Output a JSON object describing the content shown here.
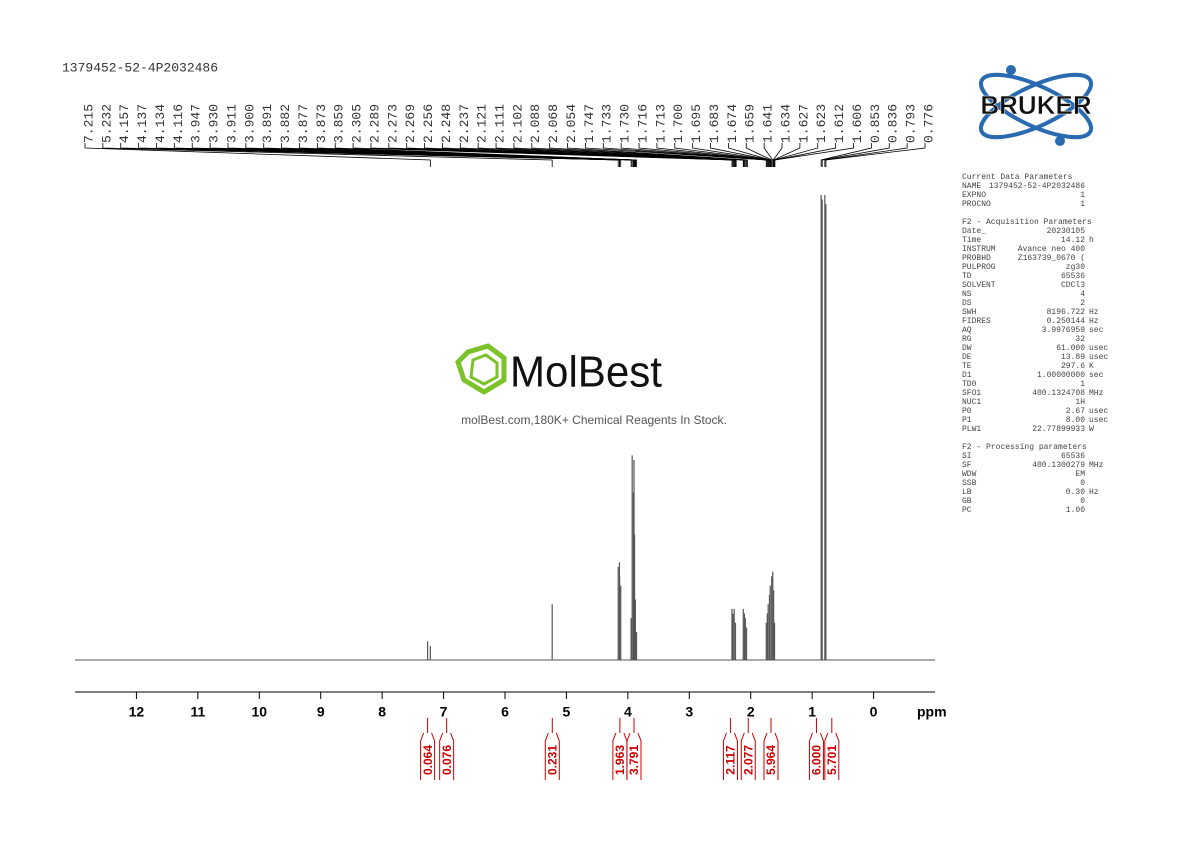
{
  "chart_data": {
    "type": "nmr",
    "title": "1379452-52-4P2032486",
    "x_label": "ppm",
    "xlim": [
      13,
      -1
    ],
    "xticks": [
      12,
      11,
      10,
      9,
      8,
      7,
      6,
      5,
      4,
      3,
      2,
      1,
      0
    ],
    "ylim": [
      0,
      100
    ],
    "color": "#555555",
    "x": [
      7.26,
      7.215,
      5.232,
      4.157,
      4.137,
      4.134,
      4.116,
      3.947,
      3.93,
      3.911,
      3.9,
      3.891,
      3.877,
      3.859,
      2.305,
      2.289,
      2.269,
      2.248,
      2.121,
      2.102,
      2.088,
      2.068,
      1.747,
      1.73,
      1.716,
      1.695,
      1.683,
      1.659,
      1.641,
      1.627,
      1.612,
      0.853,
      0.836,
      0.793,
      0.776
    ],
    "values": [
      4,
      3,
      12,
      20,
      21,
      18,
      16,
      9,
      44,
      36,
      43,
      27,
      13,
      6,
      11,
      10,
      11,
      8,
      11,
      10,
      9,
      7,
      8,
      10,
      12,
      14,
      16,
      18,
      19,
      15,
      8,
      100,
      99,
      100,
      98
    ],
    "peak_labels": [
      "7.215",
      "5.232",
      "4.157",
      "4.137",
      "4.134",
      "4.116",
      "3.947",
      "3.930",
      "3.911",
      "3.900",
      "3.891",
      "3.882",
      "3.877",
      "3.873",
      "3.859",
      "2.305",
      "2.289",
      "2.273",
      "2.269",
      "2.256",
      "2.248",
      "2.237",
      "2.121",
      "2.111",
      "2.102",
      "2.088",
      "2.068",
      "2.054",
      "1.747",
      "1.733",
      "1.730",
      "1.716",
      "1.713",
      "1.700",
      "1.695",
      "1.683",
      "1.674",
      "1.659",
      "1.641",
      "1.634",
      "1.627",
      "1.623",
      "1.612",
      "1.606",
      "0.853",
      "0.836",
      "0.793",
      "0.776"
    ],
    "integrals": [
      {
        "ppm": 7.26,
        "label": "0.064"
      },
      {
        "ppm": 6.95,
        "label": "0.076"
      },
      {
        "ppm": 5.23,
        "label": "0.231"
      },
      {
        "ppm": 4.13,
        "label": "1.963"
      },
      {
        "ppm": 3.9,
        "label": "3.791"
      },
      {
        "ppm": 2.33,
        "label": "2.117"
      },
      {
        "ppm": 2.04,
        "label": "2.077"
      },
      {
        "ppm": 1.67,
        "label": "5.964"
      },
      {
        "ppm": 0.93,
        "label": "6.000"
      },
      {
        "ppm": 0.68,
        "label": "5.701"
      }
    ]
  },
  "watermark": {
    "brand": "MolBest",
    "tagline": "molBest.com,180K+ Chemical Reagents In Stock."
  },
  "logo": "BRUKER",
  "parameters": [
    {
      "title": "Current Data Parameters",
      "rows": [
        [
          "NAME",
          "1379452-52-4P2032486",
          ""
        ],
        [
          "EXPNO",
          "1",
          ""
        ],
        [
          "PROCNO",
          "1",
          ""
        ]
      ]
    },
    {
      "title": "F2 - Acquisition Parameters",
      "rows": [
        [
          "Date_",
          "20230105",
          ""
        ],
        [
          "Time",
          "14.12",
          "h"
        ],
        [
          "INSTRUM",
          "Avance neo 400",
          ""
        ],
        [
          "PROBHD",
          "Z163739_0670 (",
          ""
        ],
        [
          "PULPROG",
          "zg30",
          ""
        ],
        [
          "TD",
          "65536",
          ""
        ],
        [
          "SOLVENT",
          "CDCl3",
          ""
        ],
        [
          "NS",
          "4",
          ""
        ],
        [
          "DS",
          "2",
          ""
        ],
        [
          "SWH",
          "8196.722",
          "Hz"
        ],
        [
          "FIDRES",
          "0.250144",
          "Hz"
        ],
        [
          "AQ",
          "3.9976959",
          "sec"
        ],
        [
          "RG",
          "32",
          ""
        ],
        [
          "DW",
          "61.000",
          "usec"
        ],
        [
          "DE",
          "13.89",
          "usec"
        ],
        [
          "TE",
          "297.6",
          "K"
        ],
        [
          "D1",
          "1.00000000",
          "sec"
        ],
        [
          "TD0",
          "1",
          ""
        ],
        [
          "SFO1",
          "400.1324708",
          "MHz"
        ],
        [
          "NUC1",
          "1H",
          ""
        ],
        [
          "P0",
          "2.67",
          "usec"
        ],
        [
          "P1",
          "8.00",
          "usec"
        ],
        [
          "PLW1",
          "22.77899933",
          "W"
        ]
      ]
    },
    {
      "title": "F2 - Processing parameters",
      "rows": [
        [
          "SI",
          "65536",
          ""
        ],
        [
          "SF",
          "400.1300279",
          "MHz"
        ],
        [
          "WDW",
          "EM",
          ""
        ],
        [
          "SSB",
          "0",
          ""
        ],
        [
          "LB",
          "0.30",
          "Hz"
        ],
        [
          "GB",
          "0",
          ""
        ],
        [
          "PC",
          "1.00",
          ""
        ]
      ]
    }
  ]
}
